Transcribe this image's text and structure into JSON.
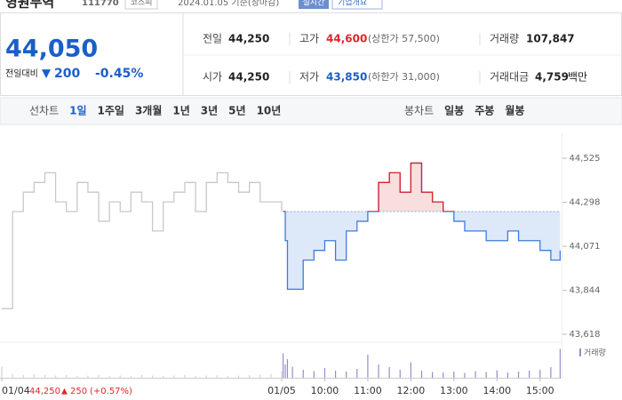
{
  "header": {
    "name": "영원무역",
    "code": "111770",
    "market": "코스피",
    "date": "2024.01.05 기준(장마감)",
    "realtime": "실시간",
    "company_info": "기업개요"
  },
  "price": {
    "current": "44,050",
    "change_label": "전일대비",
    "change": "200",
    "change_rate": "-0.45%"
  },
  "summary": [
    {
      "label": "전일",
      "value": "44,250"
    },
    {
      "label": "고가",
      "value": "44,600",
      "note": "(상한가 57,500)"
    },
    {
      "label": "거래량",
      "value": "107,847"
    },
    {
      "label": "시가",
      "value": "44,250"
    },
    {
      "label": "저가",
      "value": "43,850",
      "note": "(하한가 31,000)"
    },
    {
      "label": "거래대금",
      "value": "4,759",
      "unit": "백만"
    }
  ],
  "tabs": {
    "line_label": "선차트",
    "line": [
      "1일",
      "1주일",
      "3개월",
      "1년",
      "3년",
      "5년",
      "10년"
    ],
    "candle_label": "봉차트",
    "candle": [
      "일봉",
      "주봉",
      "월봉"
    ]
  },
  "chart_data": {
    "type": "line",
    "xlim": [
      0,
      780
    ],
    "xticks": [
      {
        "value": 0,
        "label": "01/04"
      },
      {
        "value": 390,
        "label": "01/05"
      },
      {
        "value": 450,
        "label": "10:00"
      },
      {
        "value": 510,
        "label": "11:00"
      },
      {
        "value": 570,
        "label": "12:00"
      },
      {
        "value": 630,
        "label": "13:00"
      },
      {
        "value": 690,
        "label": "14:00"
      },
      {
        "value": 750,
        "label": "15:00"
      }
    ],
    "ylim": [
      43618,
      44525
    ],
    "yticks": [
      {
        "value": 44525,
        "label": "44,525"
      },
      {
        "value": 44298,
        "label": "44,298"
      },
      {
        "value": 44071,
        "label": "44,071"
      },
      {
        "value": 43844,
        "label": "43,844"
      },
      {
        "value": 43618,
        "label": "43,618"
      }
    ],
    "baseline": 44250,
    "baseline_color": "#8aa9d6",
    "series": [
      {
        "color": "#c8c8c8",
        "x": [
          0,
          15,
          30,
          45,
          60,
          75,
          90,
          105,
          120,
          135,
          150,
          165,
          180,
          195,
          210,
          225,
          240,
          255,
          270,
          285,
          300,
          315,
          330,
          345,
          360,
          375,
          390
        ],
        "values": [
          43750,
          44250,
          44350,
          44400,
          44450,
          44300,
          44250,
          44400,
          44350,
          44200,
          44300,
          44250,
          44350,
          44300,
          44150,
          44300,
          44350,
          44400,
          44250,
          44400,
          44450,
          44400,
          44350,
          44400,
          44300,
          44300,
          44250
        ]
      },
      {
        "color": "#3b7ddd",
        "up_color": "#e0262b",
        "fill": "#dde9f8",
        "up_fill": "#f9dede",
        "x": [
          392,
          395,
          398,
          405,
          420,
          435,
          450,
          465,
          480,
          495,
          510,
          525,
          540,
          555,
          570,
          585,
          600,
          615,
          630,
          645,
          660,
          675,
          690,
          705,
          720,
          735,
          750,
          765,
          778
        ],
        "values": [
          44250,
          44100,
          43850,
          43850,
          44000,
          44050,
          44100,
          44000,
          44150,
          44200,
          44250,
          44400,
          44450,
          44350,
          44500,
          44350,
          44300,
          44250,
          44200,
          44150,
          44150,
          44100,
          44100,
          44150,
          44100,
          44100,
          44050,
          44000,
          44050
        ]
      }
    ],
    "caption": {
      "price": "44,250",
      "change": "250",
      "rate": "(+0.57%)"
    },
    "volume": {
      "legend": "거래량",
      "ylim": [
        0,
        8000
      ],
      "colors": [
        "#d3d3d3",
        "#9b8ac9"
      ],
      "values": [
        [
          2500,
          900,
          600,
          800,
          700,
          500,
          600,
          400,
          500,
          600,
          400,
          500,
          400,
          600,
          500,
          400,
          500,
          700,
          400,
          500,
          600,
          400,
          500,
          600,
          700,
          900,
          1500
        ],
        [
          5500,
          3000,
          4200,
          2500,
          1800,
          1500,
          2200,
          1600,
          1400,
          2000,
          5200,
          3000,
          2400,
          1800,
          3500,
          1600,
          1300,
          1200,
          1400,
          1100,
          1500,
          1300,
          1700,
          1200,
          1400,
          1600,
          1800,
          2400,
          6500
        ]
      ]
    }
  }
}
